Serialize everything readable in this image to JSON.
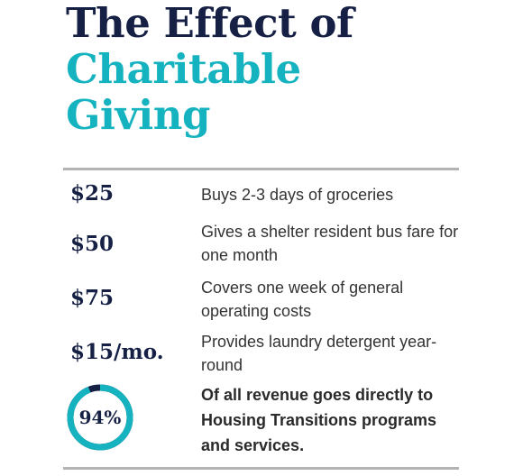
{
  "title": {
    "line1": "The Effect of",
    "line2": "Charitable",
    "line3": "Giving"
  },
  "rows": [
    {
      "amount": "$25",
      "description": "Buys 2-3 days of groceries"
    },
    {
      "amount": "$50",
      "description": "Gives a shelter resident bus fare for one month"
    },
    {
      "amount": "$75",
      "description": "Covers one week of general operating costs"
    },
    {
      "amount": "$15/mo.",
      "description": "Provides laundry detergent year-round"
    }
  ],
  "stat": {
    "label": "94%",
    "value_percent": 94,
    "description": "Of all revenue goes directly to Housing Transitions programs and services."
  },
  "colors": {
    "navy": "#152044",
    "teal": "#15b3bf",
    "rule": "#b3b3b3"
  }
}
